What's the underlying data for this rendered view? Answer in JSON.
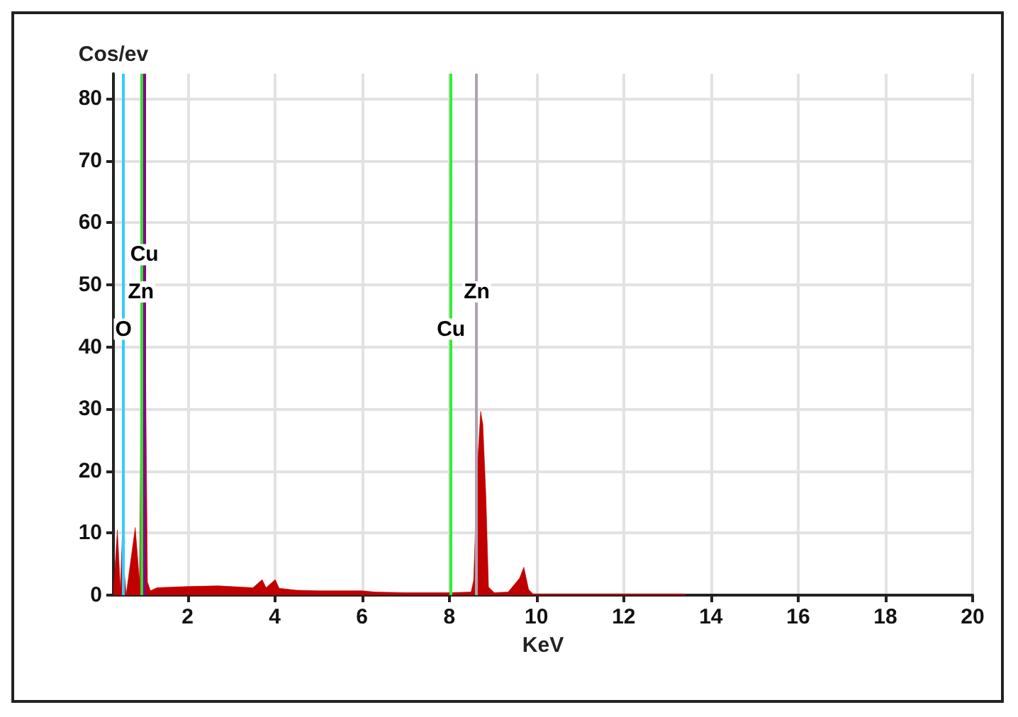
{
  "chart_data": {
    "type": "area",
    "xlabel": "KeV",
    "ylabel": "Cos/ev",
    "xlim": [
      0.3,
      20
    ],
    "ylim": [
      0,
      84
    ],
    "xticks": [
      2,
      4,
      6,
      8,
      10,
      12,
      14,
      16,
      18,
      20
    ],
    "yticks": [
      0,
      10,
      20,
      30,
      40,
      50,
      60,
      70,
      80
    ],
    "grid": true,
    "marker": "none",
    "series": [
      {
        "color": "#c00000",
        "x": [
          0.3,
          0.39,
          0.46,
          0.5,
          0.59,
          0.8,
          0.9,
          0.98,
          1.08,
          1.15,
          1.3,
          2,
          2.7,
          3.5,
          3.71,
          3.8,
          4.01,
          4.1,
          4.5,
          5,
          6,
          6.3,
          7,
          8,
          8.5,
          8.56,
          8.65,
          8.72,
          8.77,
          8.84,
          8.9,
          9.03,
          9.35,
          9.61,
          9.71,
          9.82,
          9.92,
          11,
          13.42
        ],
        "values": [
          0.5,
          10.5,
          1,
          8.8,
          0,
          10.9,
          2,
          83,
          2.1,
          0.7,
          1.2,
          1.4,
          1.5,
          1.2,
          2.5,
          1.2,
          2.5,
          1.1,
          0.8,
          0.7,
          0.7,
          0.5,
          0.4,
          0.4,
          0.5,
          2.4,
          21.4,
          29.6,
          27.5,
          16,
          1.3,
          0.4,
          0.5,
          2.7,
          4.5,
          0.9,
          0.2,
          0.2,
          0.2
        ]
      }
    ],
    "ref_lines": [
      {
        "axis": "x",
        "value": 0.53,
        "label": "O",
        "color": "#33ccff"
      },
      {
        "axis": "x",
        "value": 0.93,
        "label": "Zn",
        "color": "#33dd33"
      },
      {
        "axis": "x",
        "value": 1.01,
        "label": "Cu",
        "color": "#880088"
      },
      {
        "axis": "x",
        "value": 8.04,
        "label": "Cu",
        "color": "#33ee33"
      },
      {
        "axis": "x",
        "value": 8.63,
        "label": "Zn",
        "color": "#b0a0b0"
      }
    ]
  }
}
